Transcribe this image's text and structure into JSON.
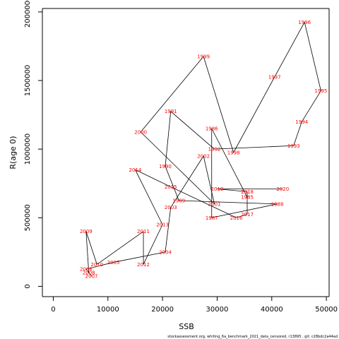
{
  "chart_data": {
    "type": "line",
    "title": "",
    "xlabel": "SSB",
    "ylabel": "R(age 0)",
    "xlim": [
      -2000,
      50500
    ],
    "ylim": [
      -75000,
      2025000
    ],
    "xticks": [
      0,
      10000,
      20000,
      30000,
      40000,
      50000
    ],
    "xtick_labels": [
      "0",
      "10000",
      "20000",
      "30000",
      "40000",
      "50000"
    ],
    "yticks": [
      0,
      500000,
      1000000,
      1500000,
      2000000
    ],
    "ytick_labels": [
      "0",
      "500000",
      "1000000",
      "1500000",
      "2000000"
    ],
    "grid": false,
    "series": [
      {
        "color": "#000000",
        "label_color": "#ff0000",
        "points": [
          {
            "year": "1985",
            "x": 35500,
            "y": 650000
          },
          {
            "year": "1986",
            "x": 29000,
            "y": 1150000
          },
          {
            "year": "1987",
            "x": 29000,
            "y": 500000
          },
          {
            "year": "1988",
            "x": 41000,
            "y": 600000
          },
          {
            "year": "1989",
            "x": 23000,
            "y": 625000
          },
          {
            "year": "1990",
            "x": 20500,
            "y": 875000
          },
          {
            "year": "1991",
            "x": 21500,
            "y": 1275000
          },
          {
            "year": "1992",
            "x": 29500,
            "y": 1000000
          },
          {
            "year": "1993",
            "x": 44000,
            "y": 1025000
          },
          {
            "year": "1994",
            "x": 45500,
            "y": 1200000
          },
          {
            "year": "1995",
            "x": 49000,
            "y": 1425000
          },
          {
            "year": "1996",
            "x": 46000,
            "y": 1925000
          },
          {
            "year": "1997",
            "x": 40500,
            "y": 1525000
          },
          {
            "year": "1998",
            "x": 33000,
            "y": 975000
          },
          {
            "year": "1999",
            "x": 27500,
            "y": 1675000
          },
          {
            "year": "2000",
            "x": 16000,
            "y": 1125000
          },
          {
            "year": "2001",
            "x": 29500,
            "y": 600000
          },
          {
            "year": "2002",
            "x": 27500,
            "y": 950000
          },
          {
            "year": "2003",
            "x": 21500,
            "y": 575000
          },
          {
            "year": "2004",
            "x": 20500,
            "y": 250000
          },
          {
            "year": "2005",
            "x": 11000,
            "y": 175000
          },
          {
            "year": "2006",
            "x": 6000,
            "y": 125000
          },
          {
            "year": "2007",
            "x": 7000,
            "y": 75000
          },
          {
            "year": "2008",
            "x": 6500,
            "y": 100000
          },
          {
            "year": "2009",
            "x": 6000,
            "y": 400000
          },
          {
            "year": "2010",
            "x": 8000,
            "y": 160000
          },
          {
            "year": "2011",
            "x": 16500,
            "y": 400000
          },
          {
            "year": "2012",
            "x": 16500,
            "y": 160000
          },
          {
            "year": "2013",
            "x": 20000,
            "y": 450000
          },
          {
            "year": "2014",
            "x": 15000,
            "y": 850000
          },
          {
            "year": "2015",
            "x": 21500,
            "y": 725000
          },
          {
            "year": "2016",
            "x": 33500,
            "y": 500000
          },
          {
            "year": "2017",
            "x": 35500,
            "y": 525000
          },
          {
            "year": "2018",
            "x": 35500,
            "y": 690000
          },
          {
            "year": "2019",
            "x": 30000,
            "y": 710000
          },
          {
            "year": "2020",
            "x": 42000,
            "y": 710000
          }
        ]
      }
    ]
  },
  "footer": {
    "text": "stockassessment.org,  whiting_6a_benchmark_2021_data_censored, r13895 ,  git: c28bdc2a44ad"
  }
}
